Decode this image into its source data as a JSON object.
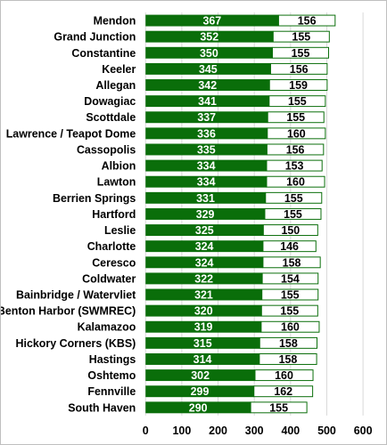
{
  "chart_data": {
    "type": "bar",
    "orientation": "horizontal",
    "stacked": true,
    "categories": [
      "Mendon",
      "Grand Junction",
      "Constantine",
      "Keeler",
      "Allegan",
      "Dowagiac",
      "Scottdale",
      "Lawrence / Teapot Dome",
      "Cassopolis",
      "Albion",
      "Lawton",
      "Berrien Springs",
      "Hartford",
      "Leslie",
      "Charlotte",
      "Ceresco",
      "Coldwater",
      "Bainbridge / Watervliet",
      "Benton Harbor (SWMREC)",
      "Kalamazoo",
      "Hickory Corners (KBS)",
      "Hastings",
      "Oshtemo",
      "Fennville",
      "South Haven"
    ],
    "series": [
      {
        "values": [
          367,
          352,
          350,
          345,
          342,
          341,
          337,
          336,
          335,
          334,
          334,
          331,
          329,
          325,
          324,
          324,
          322,
          321,
          320,
          319,
          315,
          314,
          302,
          299,
          290
        ],
        "color": "#0a6e0a"
      },
      {
        "values": [
          156,
          155,
          155,
          156,
          159,
          155,
          155,
          160,
          156,
          153,
          160,
          155,
          155,
          150,
          146,
          158,
          154,
          155,
          155,
          160,
          158,
          158,
          160,
          162,
          155
        ],
        "color": "#ffffff"
      }
    ],
    "xlim": [
      0,
      600
    ],
    "xticks": [
      "0",
      "100",
      "200",
      "300",
      "400",
      "500",
      "600"
    ],
    "grid": true,
    "colors": {
      "accent": "#0a6e0a",
      "outline": "#0a6e0a",
      "grid": "#d9d9d9"
    }
  }
}
